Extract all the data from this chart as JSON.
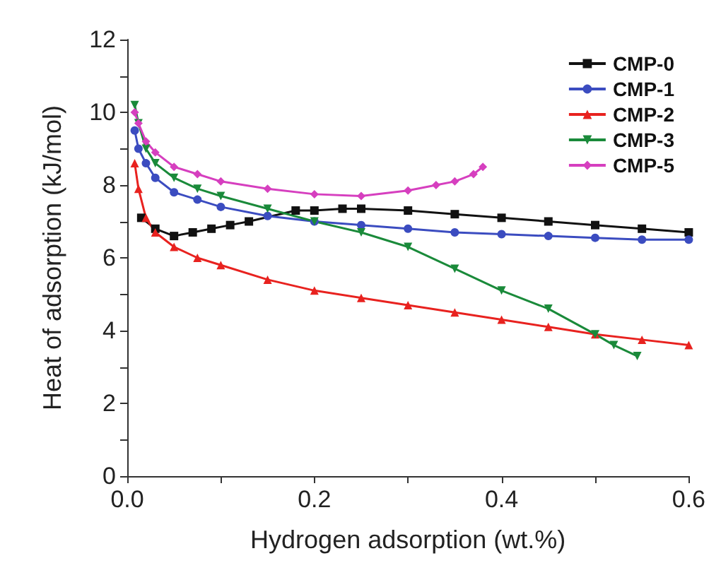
{
  "chart_data": {
    "type": "line",
    "xlabel": "Hydrogen adsorption (wt.%)",
    "ylabel": "Heat of adsorption (kJ/mol)",
    "xlim": [
      0,
      0.6
    ],
    "xticks": [
      {
        "value": 0,
        "label": "0.0"
      },
      {
        "value": 0.1,
        "label": null
      },
      0.2,
      {
        "value": 0.3,
        "label": null
      },
      0.4,
      {
        "value": 0.5,
        "label": null
      },
      {
        "value": 0.6,
        "label": "0.6"
      }
    ],
    "ylim": [
      0,
      12
    ],
    "yticks": [
      0,
      {
        "value": 1,
        "label": null
      },
      2,
      {
        "value": 3,
        "label": null
      },
      4,
      {
        "value": 5,
        "label": null
      },
      6,
      {
        "value": 7,
        "label": null
      },
      8,
      {
        "value": 9,
        "label": null
      },
      10,
      {
        "value": 11,
        "label": null
      },
      12
    ],
    "grid": false,
    "legend": "top right",
    "line_style": "solid",
    "series": [
      {
        "name": "CMP-0",
        "color": "#111111",
        "marker": "square",
        "x": [
          0.015,
          0.03,
          0.05,
          0.07,
          0.09,
          0.11,
          0.13,
          0.18,
          0.2,
          0.23,
          0.25,
          0.3,
          0.35,
          0.4,
          0.45,
          0.5,
          0.55,
          0.6
        ],
        "values": [
          7.1,
          6.8,
          6.6,
          6.7,
          6.8,
          6.9,
          7.0,
          7.3,
          7.3,
          7.35,
          7.35,
          7.3,
          7.2,
          7.1,
          7.0,
          6.9,
          6.8,
          6.7
        ]
      },
      {
        "name": "CMP-1",
        "color": "#3b4cc0",
        "marker": "circle",
        "x": [
          0.008,
          0.012,
          0.02,
          0.03,
          0.05,
          0.075,
          0.1,
          0.15,
          0.2,
          0.25,
          0.3,
          0.35,
          0.4,
          0.45,
          0.5,
          0.55,
          0.6
        ],
        "values": [
          9.5,
          9.0,
          8.6,
          8.2,
          7.8,
          7.6,
          7.4,
          7.15,
          7.0,
          6.9,
          6.8,
          6.7,
          6.65,
          6.6,
          6.55,
          6.5,
          6.5
        ]
      },
      {
        "name": "CMP-2",
        "color": "#e8221f",
        "marker": "triangle",
        "x": [
          0.008,
          0.012,
          0.02,
          0.03,
          0.05,
          0.075,
          0.1,
          0.15,
          0.2,
          0.25,
          0.3,
          0.35,
          0.4,
          0.45,
          0.5,
          0.55,
          0.6
        ],
        "values": [
          8.6,
          7.9,
          7.1,
          6.7,
          6.3,
          6.0,
          5.8,
          5.4,
          5.1,
          4.9,
          4.7,
          4.5,
          4.3,
          4.1,
          3.9,
          3.75,
          3.6
        ]
      },
      {
        "name": "CMP-3",
        "color": "#1a8a3a",
        "marker": "triangle-down",
        "x": [
          0.008,
          0.012,
          0.02,
          0.03,
          0.05,
          0.075,
          0.1,
          0.15,
          0.2,
          0.25,
          0.3,
          0.35,
          0.4,
          0.45,
          0.5,
          0.52,
          0.545
        ],
        "values": [
          10.2,
          9.7,
          9.0,
          8.6,
          8.2,
          7.9,
          7.7,
          7.35,
          7.0,
          6.7,
          6.3,
          5.7,
          5.1,
          4.6,
          3.9,
          3.6,
          3.3
        ]
      },
      {
        "name": "CMP-5",
        "color": "#d63fbf",
        "marker": "diamond",
        "x": [
          0.008,
          0.012,
          0.02,
          0.03,
          0.05,
          0.075,
          0.1,
          0.15,
          0.2,
          0.25,
          0.3,
          0.33,
          0.35,
          0.37,
          0.38
        ],
        "values": [
          10.0,
          9.7,
          9.2,
          8.9,
          8.5,
          8.3,
          8.1,
          7.9,
          7.75,
          7.7,
          7.85,
          8.0,
          8.1,
          8.3,
          8.5
        ]
      }
    ]
  }
}
